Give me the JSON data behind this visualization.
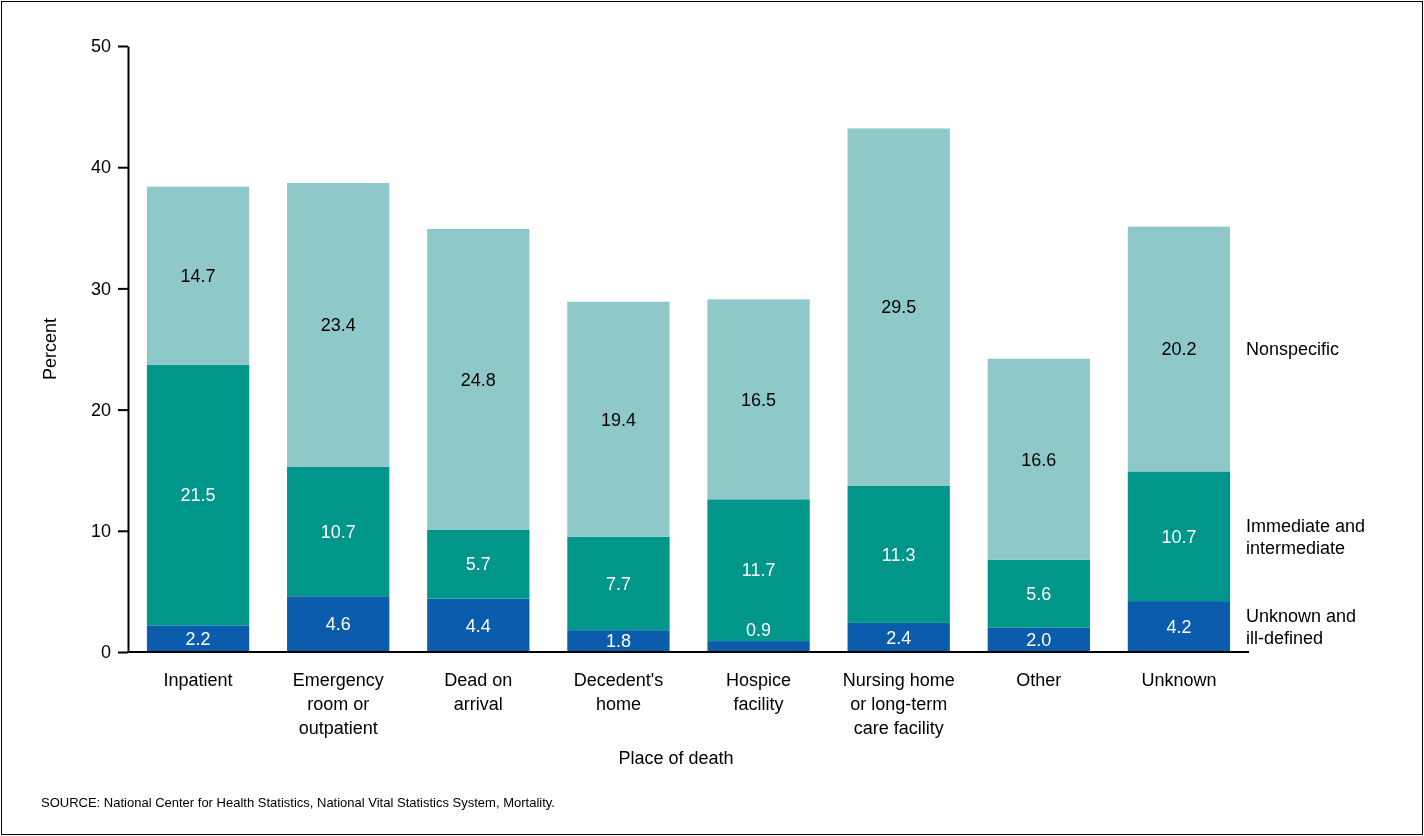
{
  "chart_data": {
    "type": "bar",
    "stacked": true,
    "xlabel": "Place of death",
    "ylabel": "Percent",
    "categories": [
      "Inpatient",
      "Emergency room or outpatient",
      "Dead on arrival",
      "Decedent's home",
      "Hospice facility",
      "Nursing home or long-term care facility",
      "Other",
      "Unknown"
    ],
    "series": [
      {
        "name": "Unknown and ill-defined",
        "color": "#0b5cad",
        "values": [
          2.2,
          4.6,
          4.4,
          1.8,
          0.9,
          2.4,
          2.0,
          4.2
        ],
        "value_labels": [
          "2.2",
          "4.6",
          "4.4",
          "1.8",
          "0.9",
          "2.4",
          "2.0",
          "4.2"
        ]
      },
      {
        "name": "Immediate and intermediate",
        "color": "#00968a",
        "values": [
          21.5,
          10.7,
          5.7,
          7.7,
          11.7,
          11.3,
          5.6,
          10.7
        ],
        "value_labels": [
          "21.5",
          "10.7",
          "5.7",
          "7.7",
          "11.7",
          "11.3",
          "5.6",
          "10.7"
        ]
      },
      {
        "name": "Nonspecific",
        "color": "#8fc8c8",
        "values": [
          14.7,
          23.4,
          24.8,
          19.4,
          16.5,
          29.5,
          16.6,
          20.2
        ],
        "value_labels": [
          "14.7",
          "23.4",
          "24.8",
          "19.4",
          "16.5",
          "29.5",
          "16.6",
          "20.2"
        ]
      }
    ],
    "ylim": [
      0,
      50
    ],
    "yticks": [
      0,
      10,
      20,
      30,
      40,
      50
    ],
    "grid": false,
    "legend": "right",
    "annotations": [
      "SOURCE: National Center for Health Statistics, National Vital Statistics System, Mortality."
    ]
  }
}
